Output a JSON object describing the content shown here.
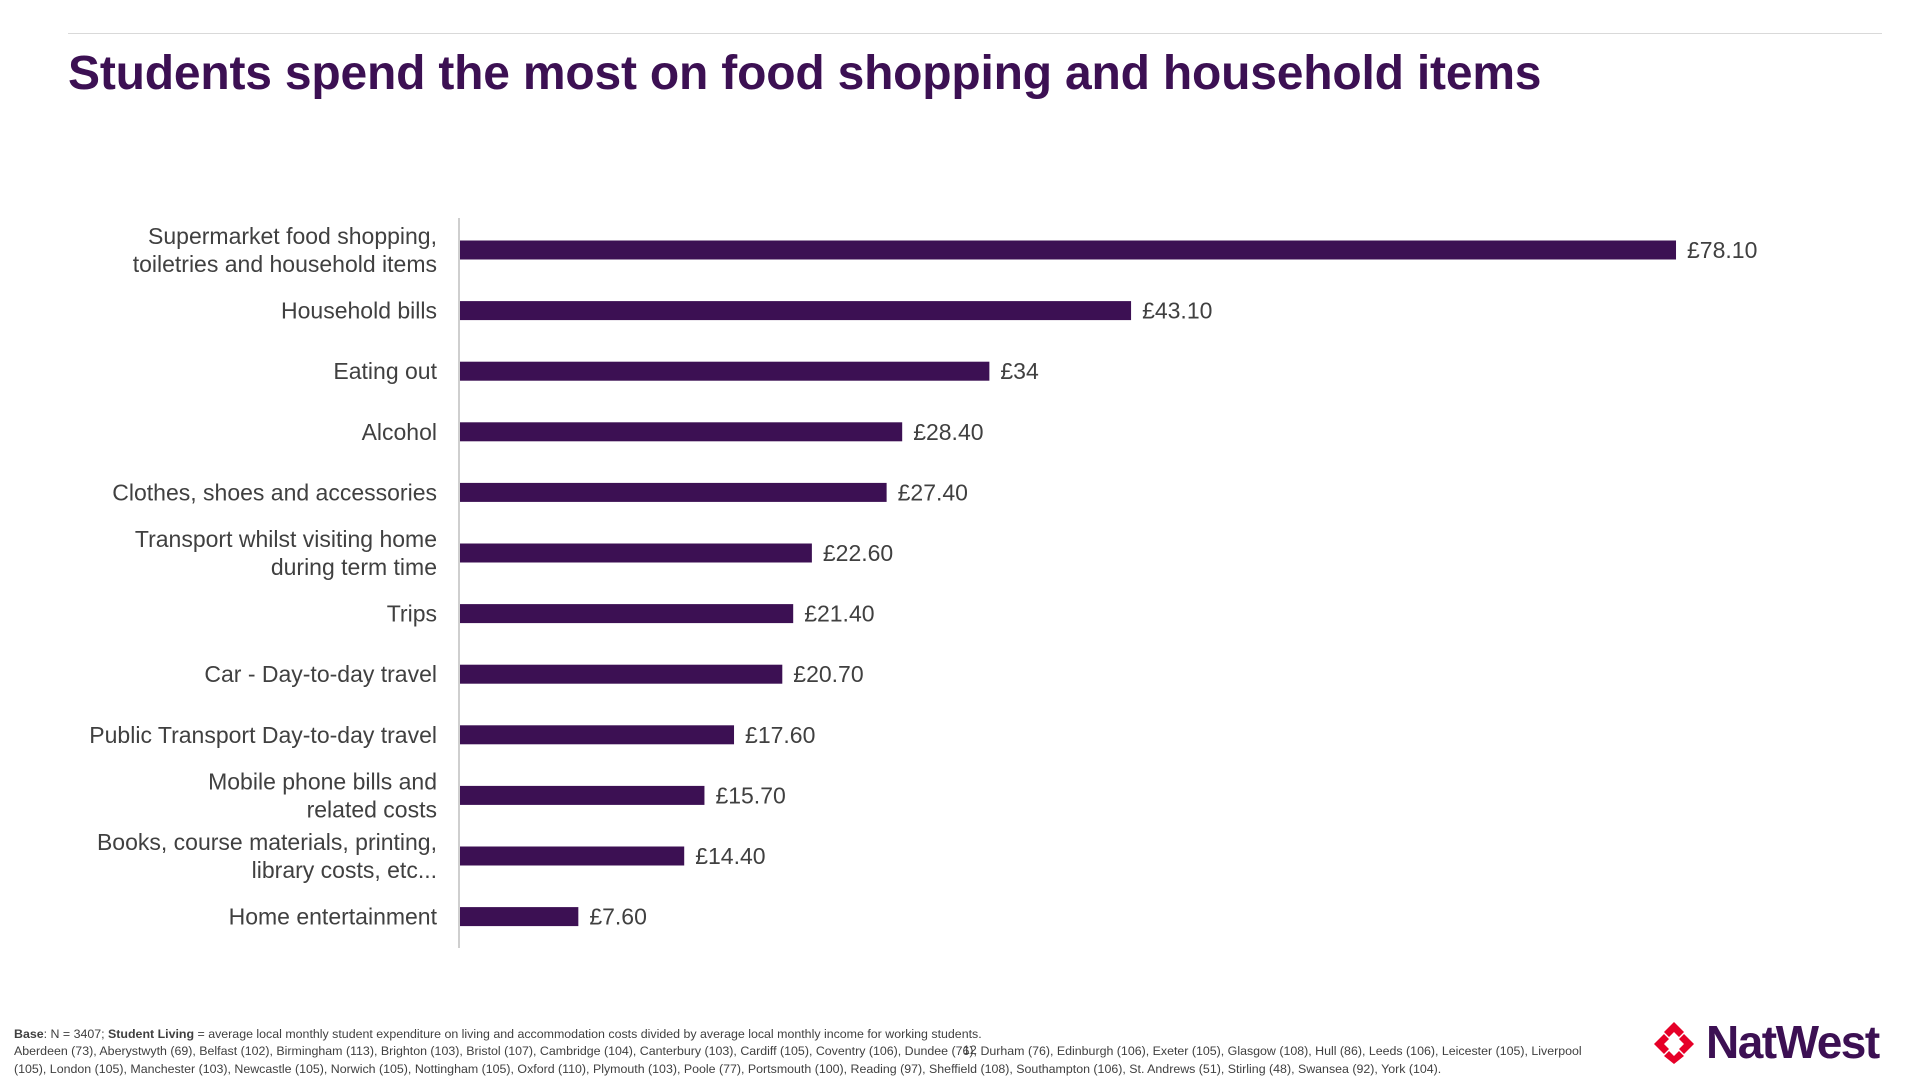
{
  "title": "Students spend the most on food shopping and household items",
  "colors": {
    "bar": "#3c1053",
    "title": "#3c1053",
    "text": "#404040",
    "axis": "#bfbfbf",
    "brand_red": "#e60028"
  },
  "chart_data": {
    "type": "bar",
    "orientation": "horizontal",
    "categories": [
      [
        "Supermarket food shopping,",
        "toiletries and household items"
      ],
      [
        "Household bills"
      ],
      [
        "Eating out"
      ],
      [
        "Alcohol"
      ],
      [
        "Clothes, shoes and accessories"
      ],
      [
        "Transport whilst visiting home",
        "during term time"
      ],
      [
        "Trips"
      ],
      [
        "Car - Day-to-day travel"
      ],
      [
        "Public Transport Day-to-day travel"
      ],
      [
        "Mobile phone bills and",
        "related costs"
      ],
      [
        "Books, course materials, printing,",
        "library costs, etc..."
      ],
      [
        "Home entertainment"
      ]
    ],
    "values": [
      78.1,
      43.1,
      34,
      28.4,
      27.4,
      22.6,
      21.4,
      20.7,
      17.6,
      15.7,
      14.4,
      7.6
    ],
    "data_labels": [
      "£78.10",
      "£43.10",
      "£34",
      "£28.40",
      "£27.40",
      "£22.60",
      "£21.40",
      "£20.70",
      "£17.60",
      "£15.70",
      "£14.40",
      "£7.60"
    ],
    "xlim": [
      0,
      90
    ],
    "grid": false,
    "legend": "none"
  },
  "footnote": {
    "base_label": "Base",
    "base_text": ": N = 3407;  ",
    "student_living_label": "Student Living",
    "student_living_text": " = average local monthly student expenditure on living and accommodation costs divided by average local monthly income for working students.",
    "cities": "Aberdeen (73), Aberystwyth (69), Belfast (102), Birmingham (113), Brighton (103), Bristol (107), Cambridge (104), Canterbury (103), Cardiff (105), Coventry (106), Dundee (76), Durham (76), Edinburgh (106), Exeter (105), Glasgow (108), Hull (86), Leeds (106), Leicester (105), Liverpool (105), London (105), Manchester (103), Newcastle (105), Norwich (105), Nottingham (105), Oxford (110), Plymouth (103), Poole (77), Portsmouth (100), Reading (97), Sheffield (108), Southampton (106), St. Andrews (51), Stirling (48), Swansea (92), York (104)."
  },
  "page_number": "12",
  "logo": {
    "text": "NatWest",
    "icon": "natwest-cubes-icon"
  }
}
